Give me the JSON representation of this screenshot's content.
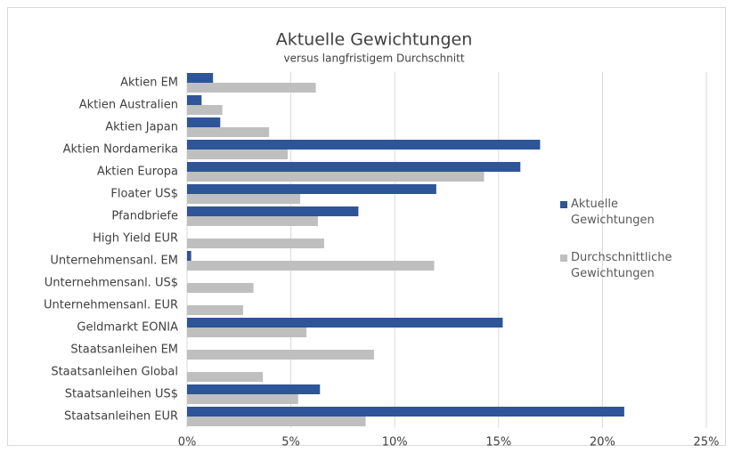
{
  "chart_data": {
    "type": "hbar",
    "title": "Aktuelle Gewichtungen",
    "subtitle": "versus langfristigem Durchschnitt",
    "categories": [
      "Aktien EM",
      "Aktien Australien",
      "Aktien Japan",
      "Aktien Nordamerika",
      "Aktien Europa",
      "Floater US$",
      "Pfandbriefe",
      "High Yield EUR",
      "Unternehmensanl. EM",
      "Unternehmensanl. US$",
      "Unternehmensanl. EUR",
      "Geldmarkt EONIA",
      "Staatsanleihen EM",
      "Staatsanleihen Global",
      "Staatsanleihen US$",
      "Staatsanleihen EUR"
    ],
    "series": [
      {
        "name": "Aktuelle Gewichtungen",
        "color": "#2e5597",
        "values": [
          1.25,
          0.7,
          1.6,
          17.0,
          16.05,
          12.0,
          8.25,
          0,
          0.2,
          0,
          0,
          15.2,
          0,
          0,
          6.4,
          21.05
        ]
      },
      {
        "name": "Durchschnittliche Gewichtungen",
        "color": "#bfbfbf",
        "values": [
          6.2,
          1.7,
          3.95,
          4.85,
          14.3,
          5.45,
          6.3,
          6.6,
          11.9,
          3.2,
          2.7,
          5.75,
          9.0,
          3.65,
          5.35,
          8.6
        ]
      }
    ],
    "xlim": [
      0,
      25
    ],
    "xticks": [
      {
        "value": 0,
        "label": "0%"
      },
      {
        "value": 5,
        "label": "5%"
      },
      {
        "value": 10,
        "label": "10%"
      },
      {
        "value": 15,
        "label": "15%"
      },
      {
        "value": 20,
        "label": "20%"
      },
      {
        "value": 25,
        "label": "25%"
      }
    ],
    "grid": true,
    "legend": "right"
  }
}
